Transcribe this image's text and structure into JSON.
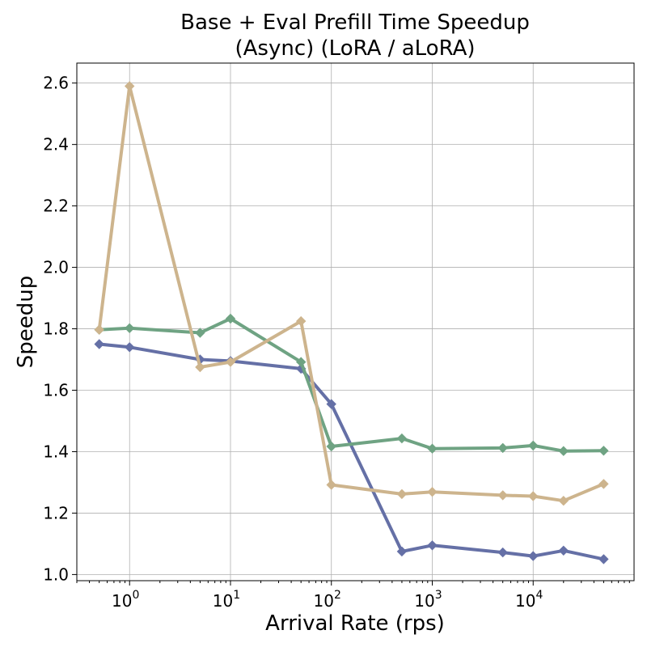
{
  "chart_data": {
    "type": "line",
    "title_line1": "Base + Eval Prefill Time Speedup",
    "title_line2": "(Async) (LoRA / aLoRA)",
    "xlabel": "Arrival Rate (rps)",
    "ylabel": "Speedup",
    "x_scale": "log",
    "xlim": [
      0.3,
      100000
    ],
    "ylim": [
      0.98,
      2.665
    ],
    "grid": true,
    "legend": "none",
    "x_ticks": [
      {
        "value": 1,
        "base": "10",
        "exp": "0"
      },
      {
        "value": 10,
        "base": "10",
        "exp": "1"
      },
      {
        "value": 100,
        "base": "10",
        "exp": "2"
      },
      {
        "value": 1000,
        "base": "10",
        "exp": "3"
      },
      {
        "value": 10000,
        "base": "10",
        "exp": "4"
      }
    ],
    "y_ticks": [
      {
        "value": 1.0,
        "label": "1.0"
      },
      {
        "value": 1.2,
        "label": "1.2"
      },
      {
        "value": 1.4,
        "label": "1.4"
      },
      {
        "value": 1.6,
        "label": "1.6"
      },
      {
        "value": 1.8,
        "label": "1.8"
      },
      {
        "value": 2.0,
        "label": "2.0"
      },
      {
        "value": 2.2,
        "label": "2.2"
      },
      {
        "value": 2.4,
        "label": "2.4"
      },
      {
        "value": 2.6,
        "label": "2.6"
      }
    ],
    "x": [
      0.5,
      1,
      5,
      10,
      50,
      100,
      500,
      1000,
      5000,
      10000,
      20000,
      50000
    ],
    "series": [
      {
        "color": "#6570a6",
        "values": [
          1.75,
          1.74,
          1.7,
          1.695,
          1.67,
          1.555,
          1.075,
          1.095,
          1.072,
          1.06,
          1.078,
          1.05
        ]
      },
      {
        "color": "#6fa383",
        "values": [
          1.797,
          1.802,
          1.787,
          1.833,
          1.692,
          1.417,
          1.443,
          1.41,
          1.412,
          1.42,
          1.402,
          1.403
        ]
      },
      {
        "color": "#cdb48d",
        "values": [
          1.797,
          2.59,
          1.675,
          1.692,
          1.825,
          1.292,
          1.262,
          1.269,
          1.258,
          1.255,
          1.24,
          1.295
        ]
      }
    ]
  }
}
